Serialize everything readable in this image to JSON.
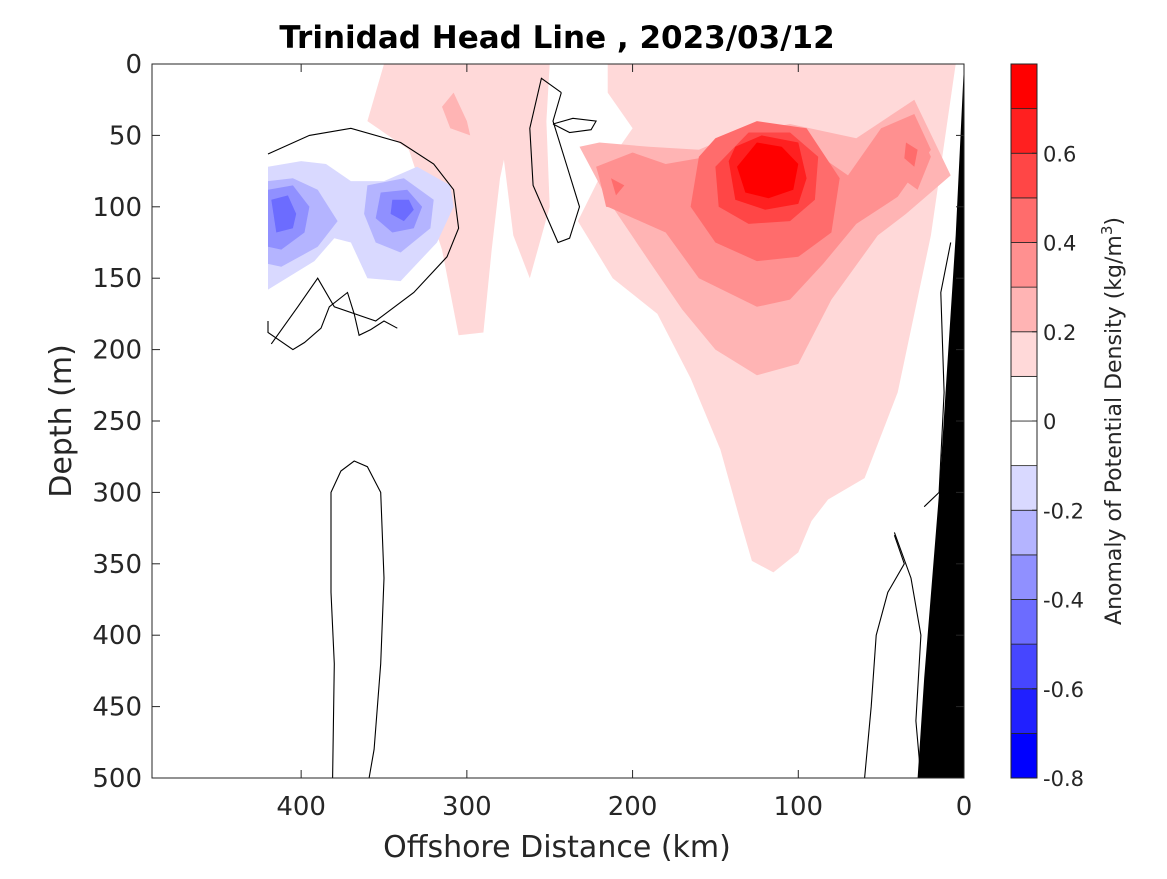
{
  "chart_data": {
    "type": "heatmap",
    "title": "Trinidad Head Line , 2023/03/12",
    "xlabel": "Offshore Distance (km)",
    "ylabel": "Depth (m)",
    "xlim": [
      490,
      0
    ],
    "ylim": [
      0,
      500
    ],
    "x_reversed": true,
    "y_reversed": true,
    "x_ticks": [
      400,
      300,
      200,
      100,
      0
    ],
    "x_tick_labels": [
      "400",
      "300",
      "200",
      "100",
      "0"
    ],
    "y_ticks": [
      0,
      50,
      100,
      150,
      200,
      250,
      300,
      350,
      400,
      450,
      500
    ],
    "y_tick_labels": [
      "0",
      "50",
      "100",
      "150",
      "200",
      "250",
      "300",
      "350",
      "400",
      "450",
      "500"
    ],
    "colorbar": {
      "label": "Anomaly of Potential Density (kg/m",
      "label_sup": "3",
      "label_close": ")",
      "min": -0.8,
      "max": 0.8,
      "levels": [
        -0.8,
        -0.7,
        -0.6,
        -0.5,
        -0.4,
        -0.3,
        -0.2,
        -0.1,
        0,
        0.1,
        0.2,
        0.3,
        0.4,
        0.5,
        0.6,
        0.7,
        0.8
      ],
      "tick_values": [
        0.6,
        0.4,
        0.2,
        0,
        -0.2,
        -0.4,
        -0.6,
        -0.8
      ],
      "tick_labels": [
        "0.6",
        "0.4",
        "0.2",
        "0",
        "-0.2",
        "-0.4",
        "-0.6",
        "-0.8"
      ],
      "colors": [
        "#0000ff",
        "#2020ff",
        "#4646ff",
        "#6c6cff",
        "#9090ff",
        "#b4b4ff",
        "#d9d9ff",
        "#ffffff",
        "#ffffff",
        "#ffd9d9",
        "#ffb4b4",
        "#ff9090",
        "#ff6c6c",
        "#ff4646",
        "#ff2020",
        "#ff0000"
      ]
    },
    "contours": [
      {
        "level": 0.1,
        "color": "#ffd9d9",
        "regions": [
          [
            [
              310,
              0
            ],
            [
              350,
              0
            ],
            [
              360,
              40
            ],
            [
              335,
              60
            ],
            [
              315,
              130
            ],
            [
              305,
              190
            ],
            [
              290,
              188
            ],
            [
              285,
              130
            ],
            [
              280,
              80
            ],
            [
              270,
              25
            ],
            [
              280,
              0
            ]
          ],
          [
            [
              250,
              0
            ],
            [
              300,
              0
            ],
            [
              280,
              45
            ],
            [
              272,
              120
            ],
            [
              262,
              150
            ],
            [
              250,
              100
            ],
            [
              252,
              40
            ]
          ],
          [
            [
              215,
              0
            ],
            [
              5,
              0
            ],
            [
              20,
              120
            ],
            [
              40,
              230
            ],
            [
              60,
              290
            ],
            [
              82,
              305
            ],
            [
              92,
              320
            ],
            [
              100,
              342
            ],
            [
              115,
              356
            ],
            [
              128,
              348
            ],
            [
              135,
              320
            ],
            [
              147,
              270
            ],
            [
              165,
              220
            ],
            [
              185,
              175
            ],
            [
              212,
              150
            ],
            [
              233,
              110
            ],
            [
              218,
              75
            ],
            [
              200,
              45
            ],
            [
              215,
              20
            ]
          ]
        ]
      },
      {
        "level": 0.2,
        "color": "#ffb4b4",
        "regions": [
          [
            [
              232,
              58
            ],
            [
              215,
              95
            ],
            [
              190,
              138
            ],
            [
              170,
              172
            ],
            [
              150,
              200
            ],
            [
              125,
              218
            ],
            [
              100,
              210
            ],
            [
              80,
              165
            ],
            [
              52,
              120
            ],
            [
              35,
              105
            ],
            [
              8,
              78
            ],
            [
              30,
              25
            ],
            [
              65,
              52
            ],
            [
              105,
              42
            ],
            [
              140,
              50
            ],
            [
              160,
              60
            ],
            [
              190,
              58
            ],
            [
              220,
              55
            ]
          ]
        ]
      },
      {
        "level": 0.3,
        "color": "#ff9090",
        "regions": [
          [
            [
              222,
              72
            ],
            [
              215,
              100
            ],
            [
              180,
              118
            ],
            [
              160,
              150
            ],
            [
              125,
              170
            ],
            [
              105,
              165
            ],
            [
              85,
              140
            ],
            [
              65,
              112
            ],
            [
              40,
              93
            ],
            [
              20,
              60
            ],
            [
              30,
              35
            ],
            [
              50,
              45
            ],
            [
              70,
              78
            ],
            [
              95,
              58
            ],
            [
              140,
              62
            ],
            [
              180,
              70
            ],
            [
              200,
              62
            ]
          ]
        ]
      },
      {
        "level": 0.4,
        "color": "#ff6c6c",
        "regions": [
          [
            [
              160,
              65
            ],
            [
              165,
              100
            ],
            [
              150,
              125
            ],
            [
              125,
              138
            ],
            [
              100,
              135
            ],
            [
              80,
              118
            ],
            [
              75,
              80
            ],
            [
              95,
              45
            ],
            [
              125,
              40
            ],
            [
              150,
              52
            ]
          ]
        ]
      },
      {
        "level": 0.5,
        "color": "#ff4646",
        "regions": [
          [
            [
              150,
              72
            ],
            [
              148,
              100
            ],
            [
              130,
              112
            ],
            [
              105,
              110
            ],
            [
              90,
              95
            ],
            [
              88,
              65
            ],
            [
              105,
              48
            ],
            [
              130,
              48
            ]
          ]
        ]
      },
      {
        "level": 0.6,
        "color": "#ff2020",
        "regions": [
          [
            [
              142,
              68
            ],
            [
              138,
              95
            ],
            [
              120,
              102
            ],
            [
              100,
              98
            ],
            [
              95,
              80
            ],
            [
              100,
              55
            ],
            [
              122,
              50
            ],
            [
              138,
              58
            ]
          ]
        ]
      },
      {
        "level": 0.7,
        "color": "#ff0000",
        "regions": [
          [
            [
              137,
              72
            ],
            [
              132,
              90
            ],
            [
              118,
              94
            ],
            [
              103,
              88
            ],
            [
              100,
              70
            ],
            [
              110,
              58
            ],
            [
              125,
              55
            ]
          ]
        ]
      },
      {
        "level": 0.3,
        "color": "#ff9090",
        "regions": [
          [
            [
              220,
              80
            ],
            [
              216,
              100
            ],
            [
              205,
              102
            ],
            [
              198,
              88
            ],
            [
              205,
              76
            ]
          ],
          [
            [
              40,
              45
            ],
            [
              30,
              40
            ],
            [
              20,
              65
            ],
            [
              28,
              88
            ],
            [
              40,
              78
            ],
            [
              42,
              60
            ]
          ]
        ]
      },
      {
        "level": 0.4,
        "color": "#ff6c6c",
        "regions": [
          [
            [
              213,
              80
            ],
            [
              210,
              92
            ],
            [
              205,
              85
            ]
          ],
          [
            [
              35,
              55
            ],
            [
              28,
              60
            ],
            [
              30,
              72
            ],
            [
              36,
              66
            ]
          ]
        ]
      },
      {
        "level": 0.2,
        "color": "#ffb4b4",
        "regions": [
          [
            [
              308,
              20
            ],
            [
              300,
              40
            ],
            [
              298,
              50
            ],
            [
              310,
              45
            ],
            [
              315,
              30
            ]
          ]
        ]
      },
      {
        "level": -0.1,
        "color": "#d9d9ff",
        "regions": [
          [
            [
              420,
              72
            ],
            [
              400,
              68
            ],
            [
              385,
              70
            ],
            [
              370,
              82
            ],
            [
              350,
              82
            ],
            [
              330,
              72
            ],
            [
              310,
              85
            ],
            [
              308,
              100
            ],
            [
              318,
              125
            ],
            [
              340,
              152
            ],
            [
              360,
              150
            ],
            [
              370,
              125
            ],
            [
              380,
              122
            ],
            [
              392,
              138
            ],
            [
              420,
              158
            ]
          ]
        ]
      },
      {
        "level": -0.2,
        "color": "#b4b4ff",
        "regions": [
          [
            [
              420,
              82
            ],
            [
              405,
              80
            ],
            [
              390,
              88
            ],
            [
              378,
              110
            ],
            [
              390,
              128
            ],
            [
              412,
              142
            ],
            [
              420,
              140
            ]
          ],
          [
            [
              360,
              85
            ],
            [
              338,
              80
            ],
            [
              320,
              95
            ],
            [
              322,
              115
            ],
            [
              340,
              132
            ],
            [
              355,
              125
            ],
            [
              362,
              105
            ]
          ]
        ]
      },
      {
        "level": -0.3,
        "color": "#9090ff",
        "regions": [
          [
            [
              420,
              88
            ],
            [
              405,
              85
            ],
            [
              395,
              100
            ],
            [
              398,
              118
            ],
            [
              412,
              130
            ],
            [
              420,
              128
            ]
          ],
          [
            [
              352,
              90
            ],
            [
              336,
              88
            ],
            [
              327,
              100
            ],
            [
              332,
              115
            ],
            [
              345,
              118
            ],
            [
              355,
              108
            ]
          ]
        ]
      },
      {
        "level": -0.4,
        "color": "#6c6cff",
        "regions": [
          [
            [
              418,
              95
            ],
            [
              408,
              92
            ],
            [
              403,
              105
            ],
            [
              405,
              115
            ],
            [
              415,
              118
            ]
          ],
          [
            [
              345,
              95
            ],
            [
              335,
              95
            ],
            [
              332,
              102
            ],
            [
              338,
              110
            ],
            [
              346,
              105
            ]
          ]
        ]
      }
    ],
    "zero_contour_lines": [
      [
        [
          420,
          63
        ],
        [
          395,
          50
        ],
        [
          370,
          45
        ],
        [
          340,
          55
        ],
        [
          320,
          70
        ],
        [
          308,
          88
        ],
        [
          305,
          115
        ],
        [
          312,
          135
        ],
        [
          332,
          160
        ],
        [
          355,
          180
        ],
        [
          380,
          170
        ],
        [
          390,
          150
        ],
        [
          402,
          170
        ],
        [
          418,
          196
        ]
      ],
      [
        [
          420,
          180
        ],
        [
          420,
          188
        ],
        [
          405,
          200
        ],
        [
          398,
          195
        ],
        [
          388,
          185
        ],
        [
          383,
          170
        ],
        [
          372,
          160
        ],
        [
          368,
          175
        ],
        [
          365,
          190
        ],
        [
          358,
          186
        ],
        [
          350,
          180
        ],
        [
          342,
          185
        ]
      ],
      [
        [
          243,
          20
        ],
        [
          255,
          10
        ],
        [
          262,
          45
        ],
        [
          260,
          85
        ],
        [
          245,
          125
        ],
        [
          238,
          122
        ],
        [
          232,
          100
        ],
        [
          240,
          70
        ],
        [
          248,
          40
        ],
        [
          243,
          20
        ]
      ],
      [
        [
          248,
          42
        ],
        [
          238,
          48
        ],
        [
          225,
          46
        ],
        [
          222,
          40
        ],
        [
          236,
          38
        ],
        [
          248,
          42
        ]
      ],
      [
        [
          381,
          500
        ],
        [
          380,
          420
        ],
        [
          382,
          370
        ],
        [
          382,
          300
        ],
        [
          376,
          285
        ],
        [
          368,
          278
        ],
        [
          360,
          282
        ],
        [
          352,
          300
        ],
        [
          350,
          360
        ],
        [
          352,
          420
        ],
        [
          356,
          480
        ],
        [
          359,
          500
        ]
      ],
      [
        [
          8,
          125
        ],
        [
          14,
          160
        ],
        [
          12,
          230
        ],
        [
          15,
          300
        ],
        [
          24,
          310
        ]
      ],
      [
        [
          42,
          330
        ],
        [
          36,
          350
        ],
        [
          46,
          370
        ],
        [
          53,
          400
        ],
        [
          56,
          450
        ],
        [
          60,
          500
        ]
      ],
      [
        [
          26,
          500
        ],
        [
          29,
          460
        ],
        [
          26,
          400
        ],
        [
          32,
          360
        ],
        [
          42,
          328
        ]
      ]
    ],
    "land": [
      [
        0,
        0
      ],
      [
        0,
        500
      ],
      [
        28,
        500
      ],
      [
        24,
        430
      ],
      [
        15,
        300
      ],
      [
        5,
        120
      ],
      [
        0,
        0
      ]
    ]
  }
}
